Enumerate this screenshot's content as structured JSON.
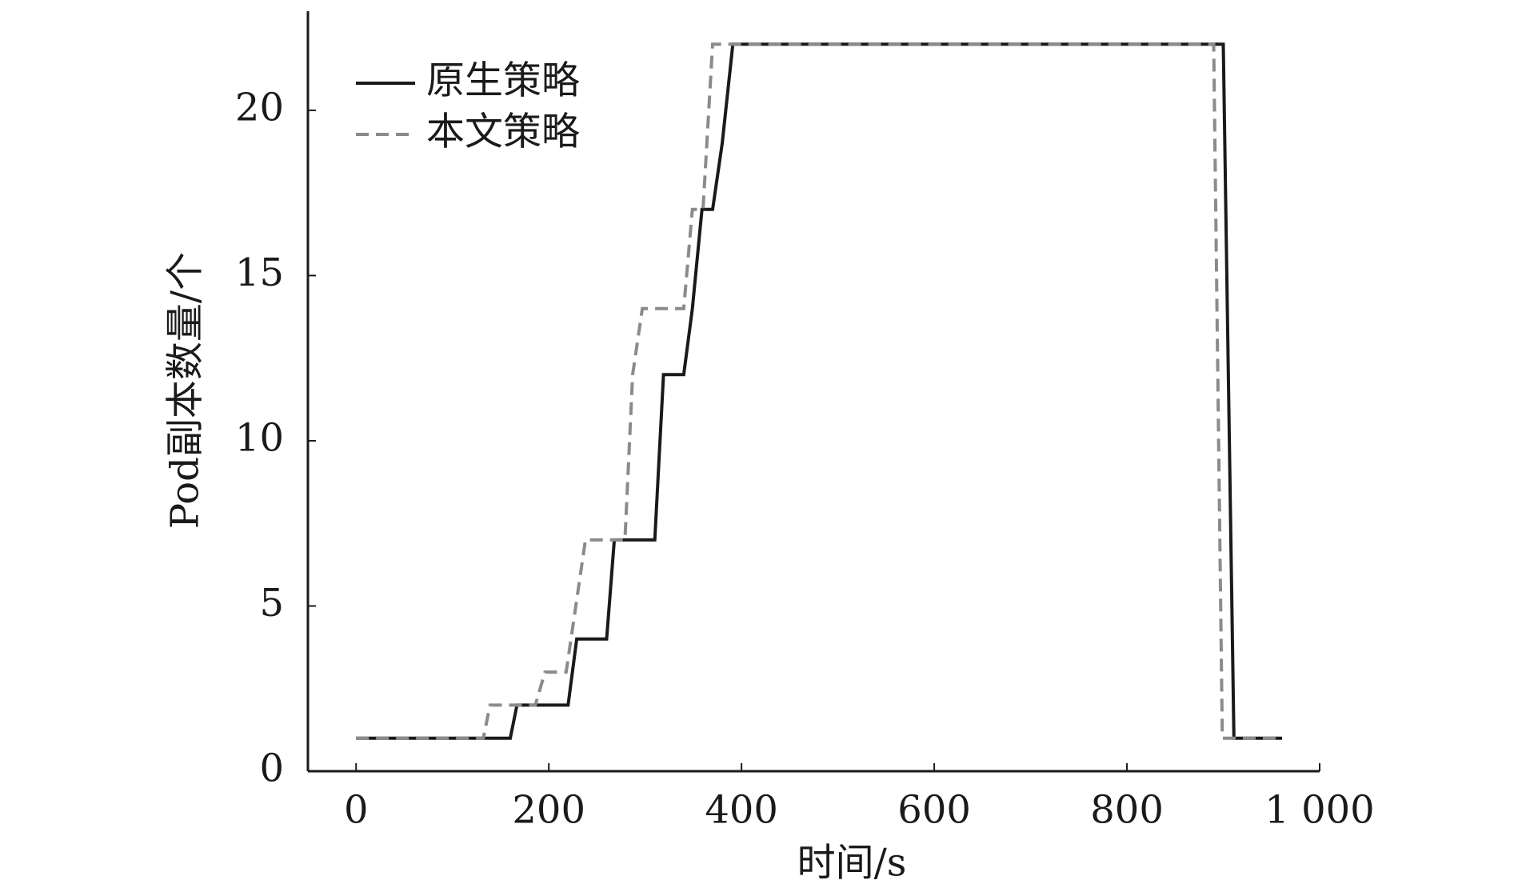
{
  "chart_data": {
    "type": "line",
    "xlabel": "时间/s",
    "ylabel": "Pod副本数量/个",
    "xlim": [
      -50,
      1000
    ],
    "ylim": [
      0,
      23
    ],
    "xticks": [
      0,
      200,
      400,
      600,
      800,
      {
        "value": 1000,
        "label": "1 000"
      }
    ],
    "yticks": [
      0,
      5,
      10,
      15,
      20
    ],
    "legend": "upper left",
    "series": [
      {
        "name": "原生策略",
        "color": "#1a1a1a",
        "linestyle": "solid",
        "x": [
          0,
          160,
          167,
          220,
          229,
          260,
          268,
          310,
          319,
          340,
          349,
          359,
          370,
          380,
          391,
          900,
          911,
          961
        ],
        "values": [
          1,
          1,
          2,
          2,
          4,
          4,
          7,
          7,
          12,
          12,
          14,
          17,
          17,
          19,
          22,
          22,
          1,
          1
        ]
      },
      {
        "name": "本文策略",
        "color": "#8c8a8c",
        "linestyle": "dashed",
        "x": [
          0,
          132,
          139,
          186,
          196,
          218,
          238,
          279,
          287,
          297,
          340,
          349,
          360,
          370,
          890,
          899,
          961
        ],
        "values": [
          1,
          1,
          2,
          2,
          3,
          3,
          7,
          7,
          12,
          14,
          14,
          17,
          17,
          22,
          22,
          1,
          1
        ]
      }
    ]
  }
}
